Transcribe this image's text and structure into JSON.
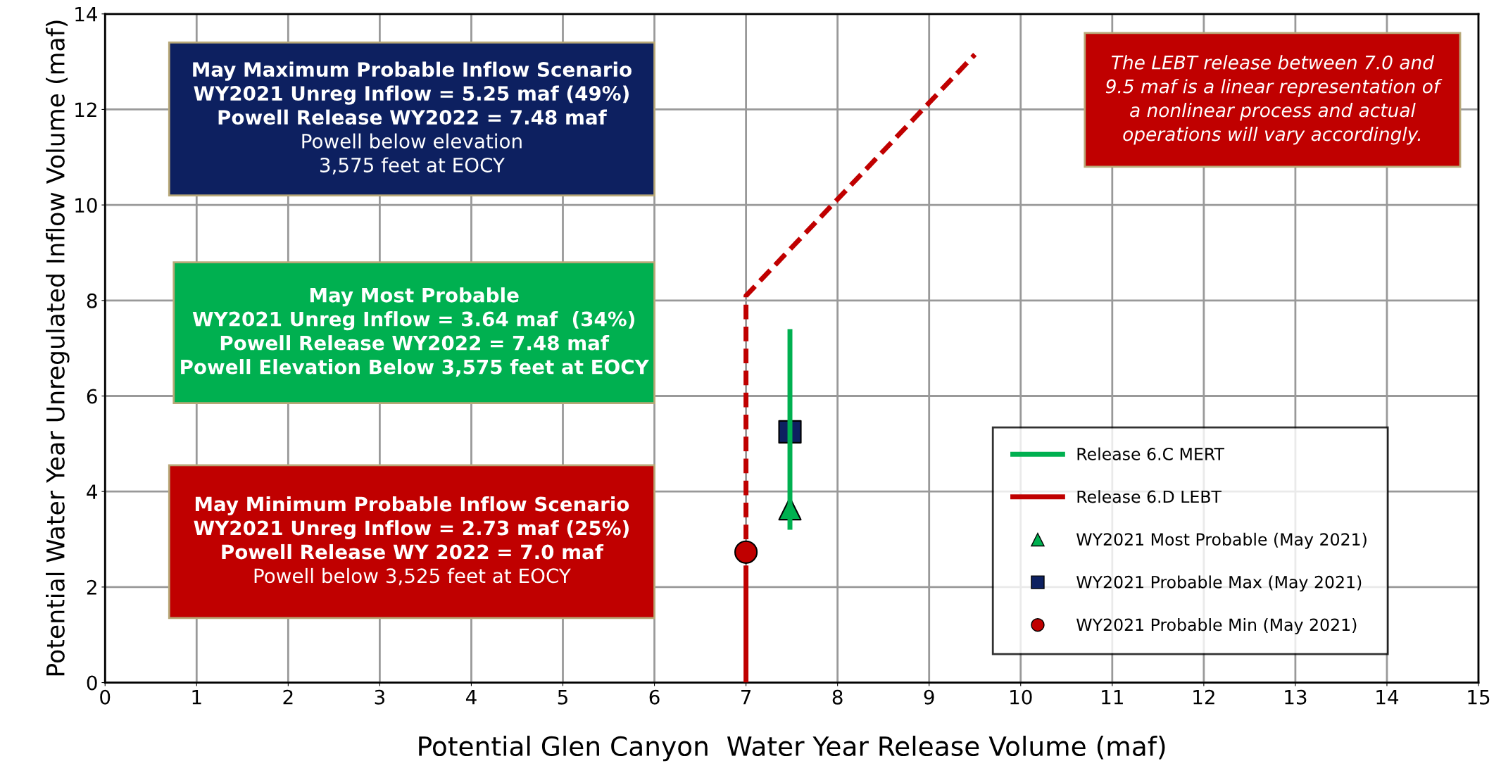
{
  "chart_data": {
    "type": "line",
    "xlabel": "Potential Glen Canyon  Water Year Release Volume (maf)",
    "ylabel": "Potential Water Year Unregulated Inflow Volume (maf)",
    "xlim": [
      0,
      15
    ],
    "xticks": [
      0,
      1,
      2,
      3,
      4,
      5,
      6,
      7,
      8,
      9,
      10,
      11,
      12,
      13,
      14,
      15
    ],
    "ylim": [
      0,
      14
    ],
    "yticks": [
      0,
      2,
      4,
      6,
      8,
      10,
      12,
      14
    ],
    "grid": true,
    "legend": "bottom right",
    "series": [
      {
        "name": "Release 6.C MERT",
        "color": "#00b050",
        "x": [
          7.48,
          7.48
        ],
        "values": [
          3.2,
          7.4
        ],
        "line_style": "solid"
      },
      {
        "name": "Release 6.D LEBT",
        "color": "#c00000",
        "x": [
          7.0,
          7.0
        ],
        "values": [
          0,
          2.45
        ],
        "line_style": "solid"
      },
      {
        "color": "#c00000",
        "x": [
          7.0,
          7.0,
          9.5
        ],
        "values": [
          3.0,
          8.1,
          13.15
        ],
        "line_style": "dashed"
      },
      {
        "name": "WY2021 Most Probable (May 2021)",
        "type": "scatter",
        "color": "#00b050",
        "x": [
          7.48
        ],
        "values": [
          3.64
        ],
        "marker": "triangle"
      },
      {
        "name": "WY2021 Probable Max (May 2021)",
        "type": "scatter",
        "color": "#0d2060",
        "x": [
          7.48
        ],
        "values": [
          5.25
        ],
        "marker": "square"
      },
      {
        "name": "WY2021 Probable Min (May 2021)",
        "type": "scatter",
        "color": "#c00000",
        "x": [
          7.0
        ],
        "values": [
          2.73
        ],
        "marker": "circle"
      }
    ],
    "annotations": [
      "May Maximum Probable Inflow Scenario\nWY2021 Unreg Inflow = 5.25 maf (49%)\nPowell Release WY2022 = 7.48 maf\nPowell below elevation\n3,575 feet at EOCY",
      "May Most Probable\nWY2021 Unreg Inflow = 3.64 maf  (34%)\nPowell Release WY2022 = 7.48 maf\nPowell Elevation Below 3,575 feet at EOCY",
      "May Minimum Probable Inflow Scenario\nWY2021 Unreg Inflow = 2.73 maf (25%)\nPowell Release WY 2022 = 7.0 maf\nPowell below 3,525 feet at EOCY",
      "The LEBT release between 7.0 and\n9.5 maf is a linear representation of\na nonlinear process and actual\noperations will vary accordingly."
    ]
  }
}
